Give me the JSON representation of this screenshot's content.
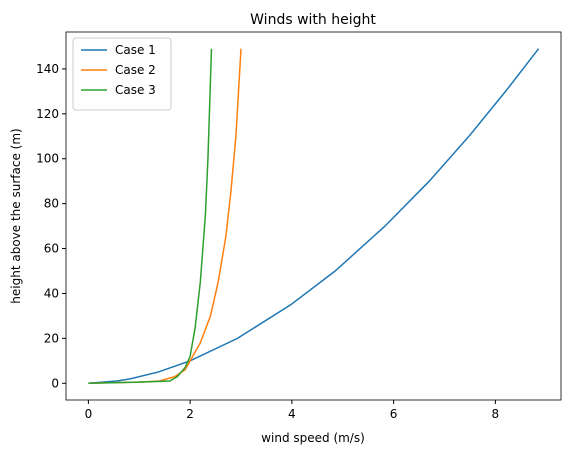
{
  "chart_data": {
    "type": "line",
    "title": "Winds with height",
    "xlabel": "wind speed (m/s)",
    "ylabel": "height above the surface (m)",
    "xlim": [
      -0.44,
      9.29
    ],
    "ylim": [
      -7.45,
      156.45
    ],
    "xticks": [
      0,
      2,
      4,
      6,
      8
    ],
    "yticks": [
      0,
      20,
      40,
      60,
      80,
      100,
      120,
      140
    ],
    "legend": "upper left",
    "series": [
      {
        "name": "Case 1",
        "color": "#1f77b4",
        "x": [
          0,
          0.56,
          0.83,
          1.37,
          2.0,
          2.93,
          3.98,
          4.85,
          5.83,
          6.7,
          7.48,
          8.2,
          8.85
        ],
        "values": [
          0,
          1,
          2,
          5,
          10,
          20,
          35,
          50,
          70,
          90,
          110,
          130,
          149
        ]
      },
      {
        "name": "Case 2",
        "color": "#ff7f0e",
        "x": [
          0,
          1.0,
          1.4,
          1.7,
          1.9,
          2.0,
          2.2,
          2.4,
          2.55,
          2.7,
          2.8,
          2.9,
          3.0
        ],
        "values": [
          0,
          0.5,
          1,
          3,
          6,
          10,
          18,
          30,
          45,
          65,
          85,
          110,
          149
        ]
      },
      {
        "name": "Case 3",
        "color": "#2ca02c",
        "x": [
          0,
          1.0,
          1.6,
          1.75,
          1.9,
          2.0,
          2.1,
          2.2,
          2.3,
          2.35,
          2.42
        ],
        "values": [
          0,
          0.5,
          1,
          3,
          7,
          12,
          25,
          45,
          75,
          100,
          149
        ]
      }
    ]
  }
}
